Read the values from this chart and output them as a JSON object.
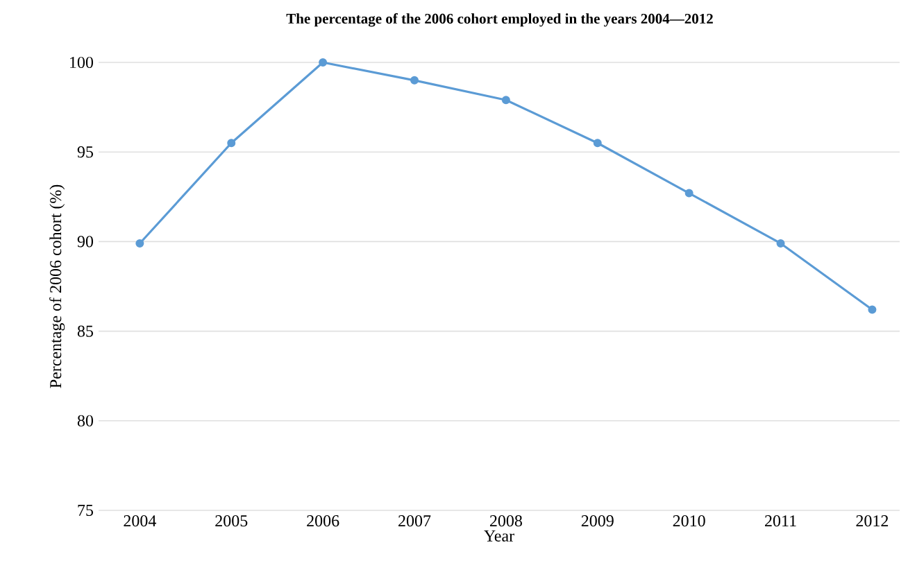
{
  "chart_data": {
    "type": "line",
    "title": "The percentage of the 2006 cohort employed in the years 2004—2012",
    "xlabel": "Year",
    "ylabel": "Percentage of 2006 cohort  (%)",
    "categories": [
      "2004",
      "2005",
      "2006",
      "2007",
      "2008",
      "2009",
      "2010",
      "2011",
      "2012"
    ],
    "series": [
      {
        "color": "#5b9bd5",
        "values": [
          89.9,
          95.5,
          100,
          99.0,
          97.9,
          95.5,
          92.7,
          89.9,
          86.2
        ]
      }
    ],
    "ylim": [
      75,
      100
    ],
    "yticks": [
      75,
      80,
      85,
      90,
      95,
      100
    ],
    "grid": "y",
    "marker": "circle",
    "line_style": "solid"
  }
}
